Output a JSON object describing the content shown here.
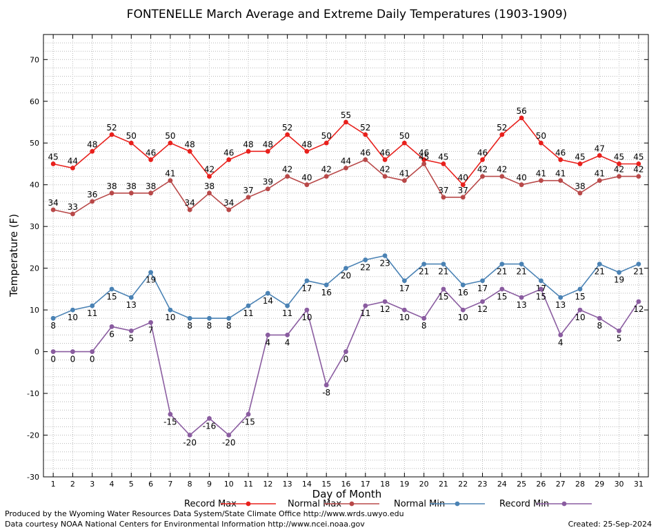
{
  "chart_data": {
    "type": "line",
    "title": "FONTENELLE March Average and Extreme Daily Temperatures (1903-1909)",
    "xlabel": "Day of Month",
    "ylabel": "Temperature (F)",
    "ylim": [
      -30,
      76
    ],
    "yticks": [
      -30,
      -20,
      -10,
      0,
      10,
      20,
      30,
      40,
      50,
      60,
      70
    ],
    "x": [
      1,
      2,
      3,
      4,
      5,
      6,
      7,
      8,
      9,
      10,
      11,
      12,
      13,
      14,
      15,
      16,
      17,
      18,
      19,
      20,
      21,
      22,
      23,
      24,
      25,
      26,
      27,
      28,
      29,
      30,
      31
    ],
    "grid": true,
    "legend_position": "bottom",
    "series": [
      {
        "name": "Record Max",
        "color": "#e8201c",
        "label_side": "above",
        "values": [
          45,
          44,
          48,
          52,
          50,
          46,
          50,
          48,
          42,
          46,
          48,
          48,
          52,
          48,
          50,
          55,
          52,
          46,
          50,
          46,
          45,
          40,
          46,
          52,
          56,
          50,
          46,
          45,
          47,
          45,
          45
        ]
      },
      {
        "name": "Normal Max",
        "color": "#b84848",
        "label_side": "above",
        "values": [
          34,
          33,
          36,
          38,
          38,
          38,
          41,
          34,
          38,
          34,
          37,
          39,
          42,
          40,
          42,
          44,
          46,
          42,
          41,
          45,
          37,
          37,
          42,
          42,
          40,
          41,
          41,
          38,
          41,
          42,
          42
        ]
      },
      {
        "name": "Normal Min",
        "color": "#4a82b4",
        "label_side": "below",
        "values": [
          8,
          10,
          11,
          15,
          13,
          19,
          10,
          8,
          8,
          8,
          11,
          14,
          11,
          17,
          16,
          20,
          22,
          23,
          17,
          21,
          21,
          16,
          17,
          21,
          21,
          17,
          13,
          15,
          21,
          19,
          21
        ]
      },
      {
        "name": "Record Min",
        "color": "#8a5ca0",
        "label_side": "below",
        "values": [
          0,
          0,
          0,
          6,
          5,
          7,
          -15,
          -20,
          -16,
          -20,
          -15,
          4,
          4,
          10,
          -8,
          0,
          11,
          12,
          10,
          8,
          15,
          10,
          12,
          15,
          13,
          15,
          4,
          10,
          8,
          5,
          12
        ]
      }
    ]
  },
  "footer": {
    "produced_by": "Produced by the Wyoming Water Resources Data System/State Climate Office http://www.wrds.uwyo.edu",
    "data_courtesy": "Data courtesy NOAA National Centers for Environmental Information http://www.ncei.noaa.gov",
    "created": "Created:  25-Sep-2024"
  }
}
